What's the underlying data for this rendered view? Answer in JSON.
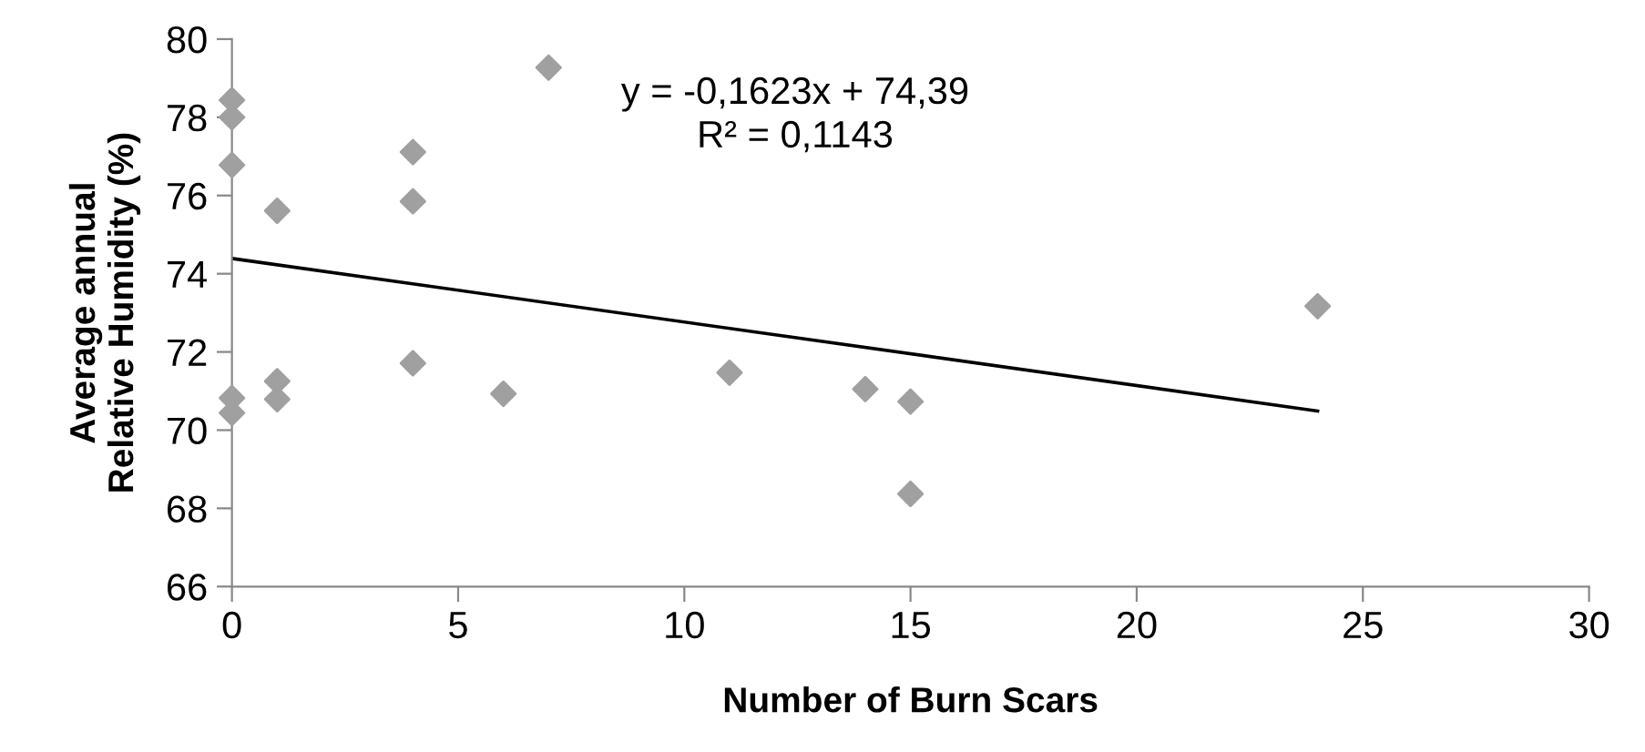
{
  "chart_data": {
    "type": "scatter",
    "xlabel": "Number of Burn Scars",
    "ylabel": "Average annual\nRelative Humidity (%)",
    "xlim": [
      0,
      30
    ],
    "xticks": [
      0,
      5,
      10,
      15,
      20,
      25,
      30
    ],
    "ylim": [
      66,
      80
    ],
    "yticks": [
      66,
      68,
      70,
      72,
      74,
      76,
      78,
      80
    ],
    "grid": false,
    "legend": false,
    "annotations": [
      "y = -0,1623x + 74,39\nR² = 0,1143"
    ],
    "series": [
      {
        "marker": "diamond",
        "color": "#a0a0a0",
        "x": [
          0,
          0,
          0,
          0,
          0,
          1,
          1,
          1,
          4,
          4,
          4,
          6,
          7,
          11,
          14,
          15,
          15,
          24
        ],
        "values": [
          78.44,
          78.0,
          76.78,
          70.82,
          70.44,
          75.61,
          71.25,
          70.79,
          77.11,
          75.85,
          71.71,
          70.93,
          79.27,
          71.47,
          71.05,
          70.73,
          68.37,
          73.17
        ]
      },
      {
        "type": "line",
        "marker": "none",
        "line_style": "solid",
        "color": "#000000",
        "x": [
          0,
          24
        ],
        "values": [
          74.39,
          70.49
        ]
      }
    ]
  }
}
